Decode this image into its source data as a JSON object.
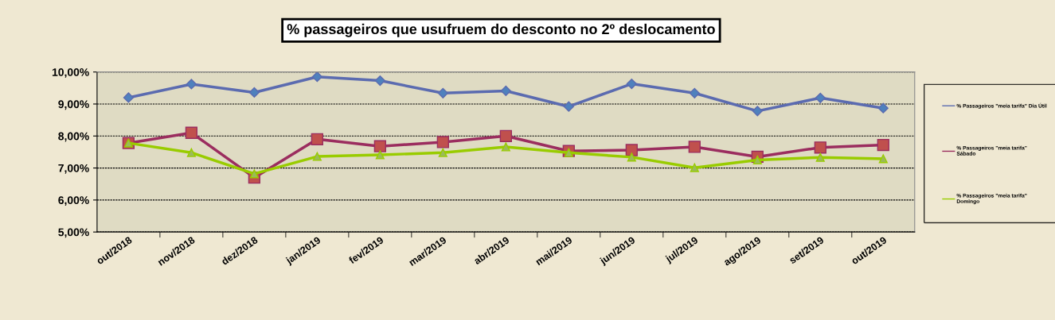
{
  "chart_data": {
    "type": "line",
    "title": "% passageiros que usufruem do desconto no 2º deslocamento",
    "categories": [
      "out/2018",
      "nov/2018",
      "dez/2018",
      "jan/2019",
      "fev/2019",
      "mar/2019",
      "abr/2019",
      "mai/2019",
      "jun/2019",
      "jul/2019",
      "ago/2019",
      "set/2019",
      "out/2019"
    ],
    "series": [
      {
        "name": "% Passageiros \"meia tarifa\" Dia Útil",
        "color": "#5b6bb0",
        "marker": "diamond",
        "values": [
          9.2,
          9.62,
          9.36,
          9.85,
          9.73,
          9.34,
          9.41,
          8.92,
          9.63,
          9.34,
          8.78,
          9.19,
          8.87
        ]
      },
      {
        "name": "% Passageiros \"meia tarifa\"\nSábado",
        "color": "#9b2d5f",
        "marker": "square",
        "values": [
          7.78,
          8.1,
          6.7,
          7.9,
          7.68,
          7.81,
          8.0,
          7.53,
          7.56,
          7.66,
          7.35,
          7.64,
          7.72
        ]
      },
      {
        "name": "% Passageiros \"meia tarifa\"\nDomingo",
        "color": "#99cc00",
        "marker": "triangle",
        "values": [
          7.78,
          7.48,
          6.82,
          7.36,
          7.41,
          7.48,
          7.66,
          7.48,
          7.34,
          7.01,
          7.25,
          7.33,
          7.29
        ]
      }
    ],
    "ylim": [
      5,
      10
    ],
    "yticks": [
      {
        "value": 5,
        "label": "5,00%"
      },
      {
        "value": 6,
        "label": "6,00%"
      },
      {
        "value": 7,
        "label": "7,00%"
      },
      {
        "value": 8,
        "label": "8,00%"
      },
      {
        "value": 9,
        "label": "9,00%"
      },
      {
        "value": 10,
        "label": "10,00%"
      }
    ],
    "grid": "y",
    "legend": "right",
    "line_style": "solid"
  }
}
